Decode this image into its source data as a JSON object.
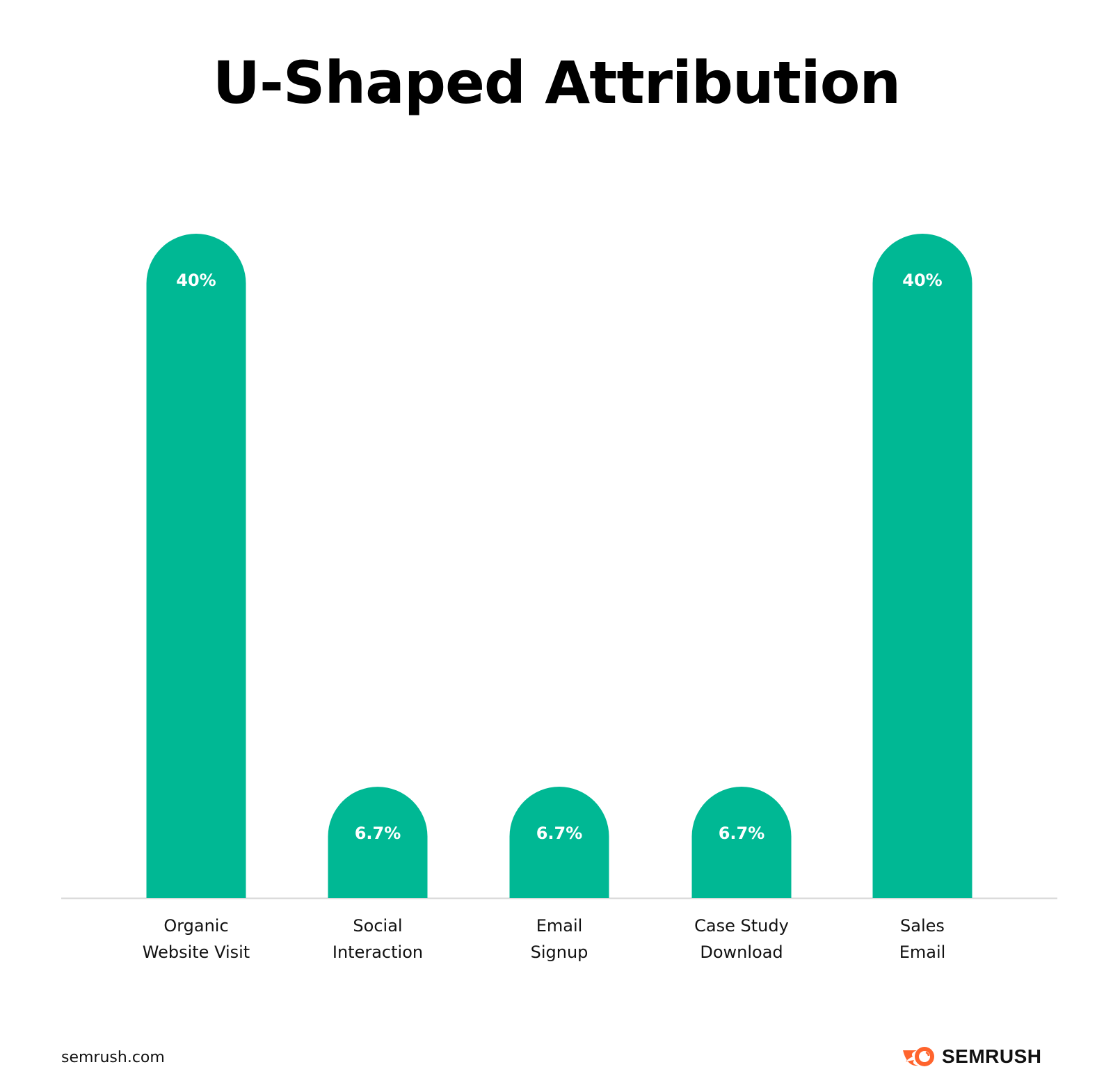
{
  "chart_data": {
    "type": "bar",
    "title": "U-Shaped Attribution",
    "categories": [
      [
        "Organic",
        "Website Visit"
      ],
      [
        "Social",
        "Interaction"
      ],
      [
        "Email",
        "Signup"
      ],
      [
        "Case Study",
        "Download"
      ],
      [
        "Sales",
        "Email"
      ]
    ],
    "values": [
      40,
      6.7,
      6.7,
      6.7,
      40
    ],
    "data_labels": [
      "40%",
      "6.7%",
      "6.7%",
      "6.7%",
      "40%"
    ],
    "ylim": [
      0,
      40
    ],
    "grid": false,
    "bar_color": "#00B894",
    "label_color": "#ffffff"
  },
  "footer": {
    "url": "semrush.com",
    "logo_text": "SEMRUSH",
    "logo_color": "#FF642D"
  }
}
